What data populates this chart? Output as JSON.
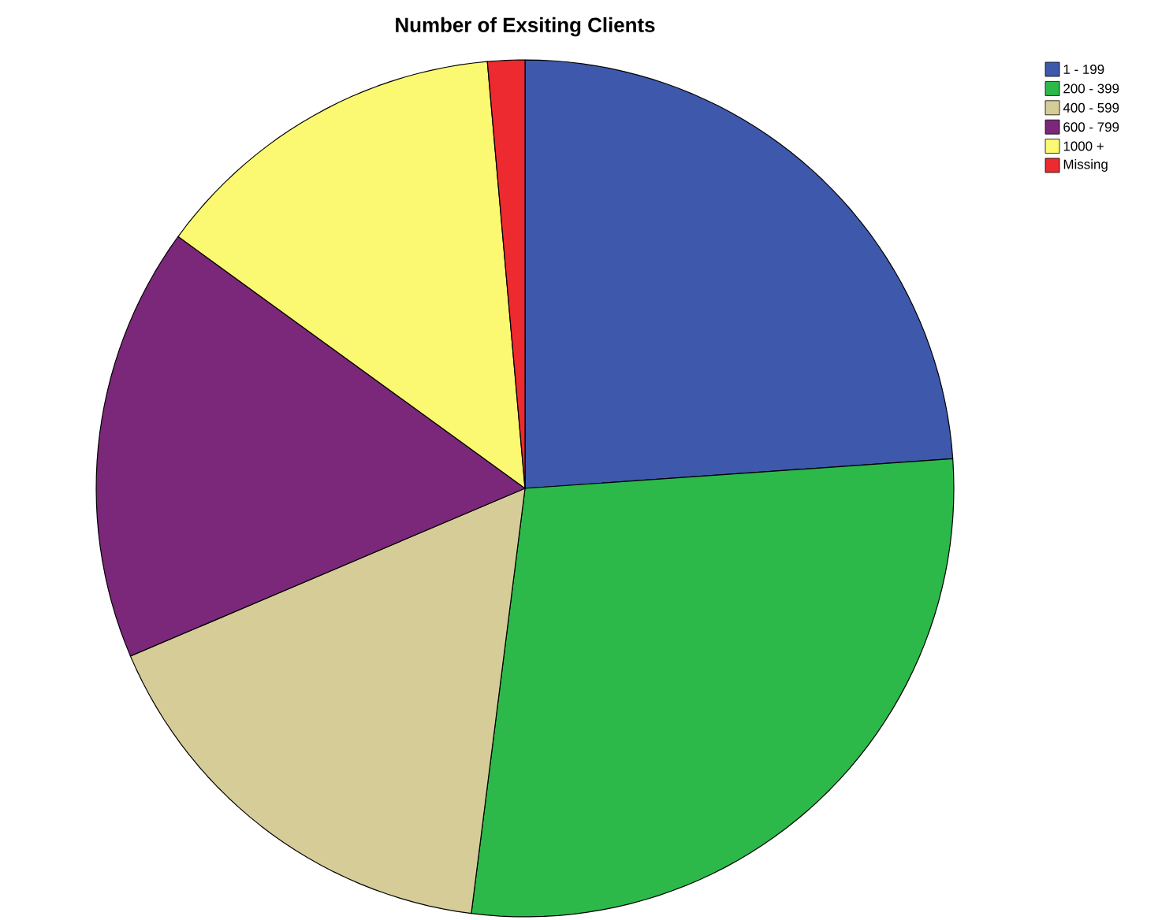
{
  "chart_data": {
    "type": "pie",
    "title": "Number of Exsiting Clients",
    "categories": [
      "1 - 199",
      "200 - 399",
      "400 - 599",
      "600 - 799",
      "1000 +",
      "Missing"
    ],
    "values": [
      23.9,
      28.1,
      16.6,
      16.4,
      13.6,
      1.4
    ],
    "colors": [
      "#3e58ac",
      "#2db84a",
      "#d6cc98",
      "#7b277a",
      "#fbf871",
      "#ec2a2f"
    ],
    "legend": "top right"
  }
}
